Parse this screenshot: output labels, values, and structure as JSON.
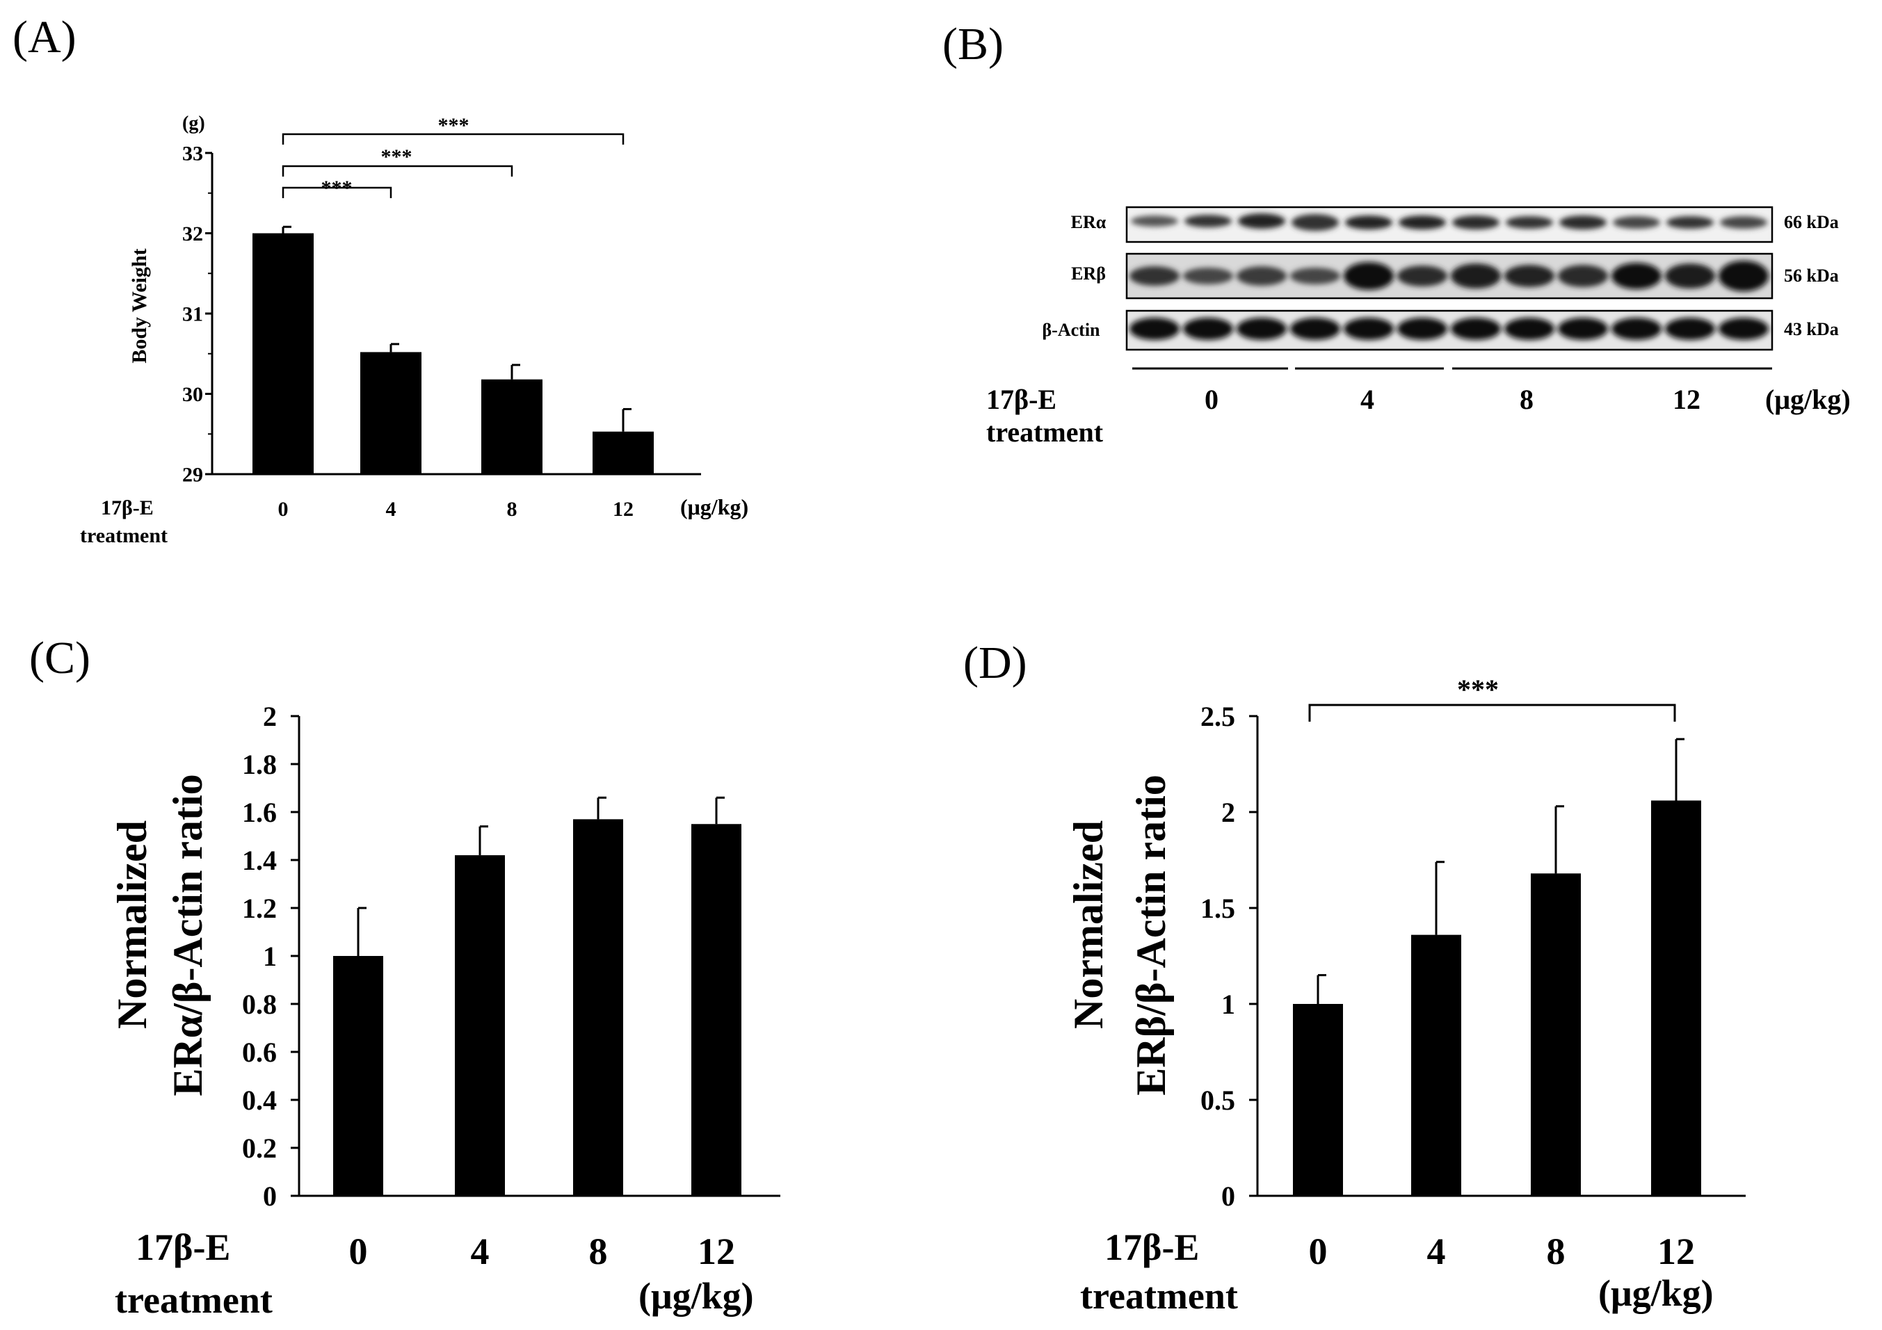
{
  "panels": {
    "A": "(A)",
    "B": "(B)",
    "C": "(C)",
    "D": "(D)"
  },
  "chart_data": [
    {
      "panel": "A",
      "type": "bar",
      "ylabel": "Body Weight",
      "yunit": "(g)",
      "categories": [
        "0",
        "4",
        "8",
        "12"
      ],
      "values": [
        32.0,
        30.52,
        30.18,
        29.53
      ],
      "errors": [
        0.08,
        0.1,
        0.18,
        0.28
      ],
      "ylim": [
        29,
        33
      ],
      "yticks": [
        "29",
        "30",
        "31",
        "32",
        "33"
      ],
      "xlabel_line1": "17β-E",
      "xlabel_line2": "treatment",
      "xunit": "(μg/kg)",
      "significance": [
        "***",
        "***",
        "***"
      ]
    },
    {
      "panel": "B",
      "type": "blot",
      "rows": [
        {
          "label": "ERα",
          "kda": "66 kDa"
        },
        {
          "label": "ERβ",
          "kda": "56 kDa"
        },
        {
          "label": "β-Actin",
          "kda": "43 kDa"
        }
      ],
      "groups": [
        "0",
        "4",
        "8",
        "12"
      ],
      "xlabel_line1": "17β-E",
      "xlabel_line2": "treatment",
      "xunit": "(μg/kg)"
    },
    {
      "panel": "C",
      "type": "bar",
      "ylabel_line1": "Normalized",
      "ylabel_line2": "ERα/β-Actin ratio",
      "categories": [
        "0",
        "4",
        "8",
        "12"
      ],
      "values": [
        1.0,
        1.42,
        1.57,
        1.55
      ],
      "errors": [
        0.2,
        0.12,
        0.09,
        0.11
      ],
      "ylim": [
        0,
        2
      ],
      "yticks": [
        "0",
        "0.2",
        "0.4",
        "0.6",
        "0.8",
        "1",
        "1.2",
        "1.4",
        "1.6",
        "1.8",
        "2"
      ],
      "xlabel_line1": "17β-E",
      "xlabel_line2": "treatment",
      "xunit": "(μg/kg)"
    },
    {
      "panel": "D",
      "type": "bar",
      "ylabel_line1": "Normalized",
      "ylabel_line2": "ERβ/β-Actin ratio",
      "categories": [
        "0",
        "4",
        "8",
        "12"
      ],
      "values": [
        1.0,
        1.36,
        1.68,
        2.06
      ],
      "errors": [
        0.15,
        0.38,
        0.35,
        0.32
      ],
      "ylim": [
        0,
        2.5
      ],
      "yticks": [
        "0",
        "0.5",
        "1",
        "1.5",
        "2",
        "2.5"
      ],
      "xlabel_line1": "17β-E",
      "xlabel_line2": "treatment",
      "xunit": "(μg/kg)",
      "significance": [
        "***"
      ]
    }
  ]
}
